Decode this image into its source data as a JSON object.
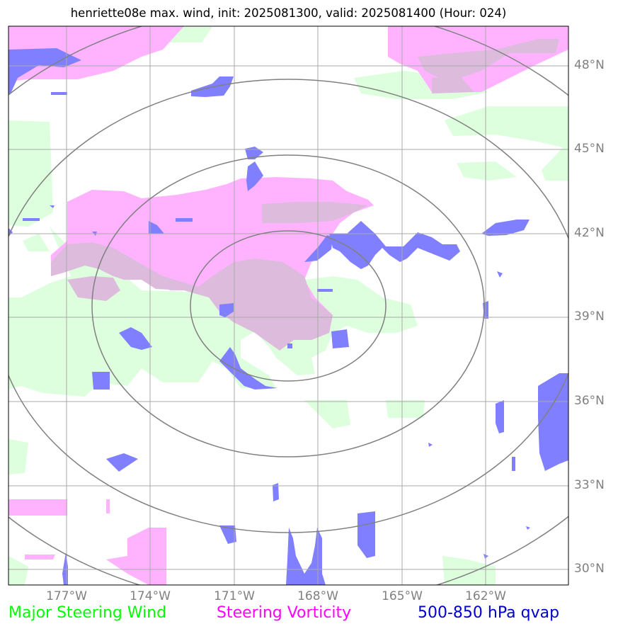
{
  "title": "henriette08e max. wind, init: 2025081300, valid: 2025081400 (Hour: 024)",
  "lat_labels": [
    "48°N",
    "45°N",
    "42°N",
    "39°N",
    "36°N",
    "33°N",
    "30°N"
  ],
  "lon_labels": [
    "177°W",
    "174°W",
    "171°W",
    "168°W",
    "165°W",
    "162°W"
  ],
  "legend": {
    "wind": "Major Steering Wind",
    "vorticity": "Steering Vorticity",
    "qvap": "500-850 hPa qvap"
  },
  "colors": {
    "wind": "#00ff00",
    "vorticity": "#ff00ff",
    "qvap": "#0000cc",
    "wind_fill": "#ddffdd",
    "vorticity_fill": "#ffb3ff",
    "vorticity_dark_fill": "#ddbbdd",
    "qvap_fill": "#7f7fff",
    "grid": "#a9a9a9",
    "range_rings": "#808080",
    "tick_labels": "#808080"
  }
}
